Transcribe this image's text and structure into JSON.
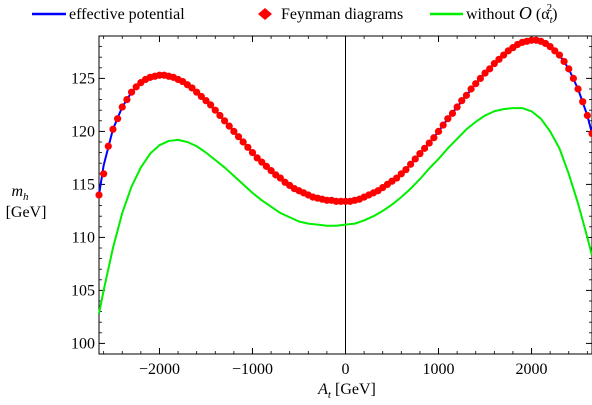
{
  "chart_data": {
    "type": "line",
    "title": "",
    "xlabel": {
      "symbol": "A",
      "sub": "t",
      "unit": "[GeV]"
    },
    "ylabel": {
      "symbol": "m",
      "sub": "h",
      "unit": "[GeV]"
    },
    "xlim": [
      -2650,
      2650
    ],
    "ylim": [
      99,
      129
    ],
    "x_ticks": [
      -2000,
      -1000,
      0,
      1000,
      2000
    ],
    "x_tick_labels": [
      "−2000",
      "−1000",
      "0",
      "1000",
      "2000"
    ],
    "y_ticks": [
      100,
      105,
      110,
      115,
      120,
      125
    ],
    "y_tick_labels": [
      "100",
      "105",
      "110",
      "115",
      "120",
      "125"
    ],
    "legend_placement": "top",
    "vertical_line_at_x": 0,
    "series": [
      {
        "name": "effective potential",
        "style": "line",
        "color": "#0000ff",
        "x": [
          -2650,
          -2600,
          -2500,
          -2400,
          -2300,
          -2200,
          -2100,
          -2000,
          -1900,
          -1800,
          -1700,
          -1600,
          -1500,
          -1400,
          -1300,
          -1200,
          -1100,
          -1000,
          -900,
          -800,
          -700,
          -600,
          -500,
          -400,
          -300,
          -200,
          -100,
          0,
          100,
          200,
          300,
          400,
          500,
          600,
          700,
          800,
          900,
          1000,
          1100,
          1200,
          1300,
          1400,
          1500,
          1600,
          1700,
          1800,
          1900,
          2000,
          2100,
          2200,
          2300,
          2400,
          2500,
          2600,
          2650
        ],
        "values": [
          114.0,
          116.8,
          120.2,
          122.3,
          123.7,
          124.6,
          125.1,
          125.3,
          125.2,
          124.9,
          124.4,
          123.7,
          122.9,
          122.0,
          121.0,
          120.0,
          119.0,
          118.0,
          117.1,
          116.3,
          115.6,
          114.9,
          114.4,
          114.0,
          113.7,
          113.5,
          113.4,
          113.4,
          113.5,
          113.8,
          114.2,
          114.7,
          115.3,
          116.0,
          116.9,
          117.9,
          118.9,
          120.0,
          121.2,
          122.3,
          123.4,
          124.5,
          125.5,
          126.4,
          127.2,
          127.9,
          128.4,
          128.6,
          128.5,
          128.0,
          127.2,
          125.9,
          124.0,
          121.5,
          119.8
        ]
      },
      {
        "name": "Feynman diagrams",
        "style": "points",
        "color": "#ff0000",
        "x": [
          -2650,
          -2600,
          -2550,
          -2500,
          -2450,
          -2400,
          -2350,
          -2300,
          -2250,
          -2200,
          -2150,
          -2100,
          -2050,
          -2000,
          -1950,
          -1900,
          -1850,
          -1800,
          -1750,
          -1700,
          -1650,
          -1600,
          -1550,
          -1500,
          -1450,
          -1400,
          -1350,
          -1300,
          -1250,
          -1200,
          -1150,
          -1100,
          -1050,
          -1000,
          -950,
          -900,
          -850,
          -800,
          -750,
          -700,
          -650,
          -600,
          -550,
          -500,
          -450,
          -400,
          -350,
          -300,
          -250,
          -200,
          -150,
          -100,
          -50,
          0,
          50,
          100,
          150,
          200,
          250,
          300,
          350,
          400,
          450,
          500,
          550,
          600,
          650,
          700,
          750,
          800,
          850,
          900,
          950,
          1000,
          1050,
          1100,
          1150,
          1200,
          1250,
          1300,
          1350,
          1400,
          1450,
          1500,
          1550,
          1600,
          1650,
          1700,
          1750,
          1800,
          1850,
          1900,
          1950,
          2000,
          2050,
          2100,
          2150,
          2200,
          2250,
          2300,
          2350,
          2400,
          2450,
          2500,
          2550,
          2600,
          2650
        ],
        "values": [
          114.0,
          116.0,
          118.6,
          120.2,
          121.2,
          122.3,
          123.0,
          123.7,
          124.2,
          124.6,
          124.9,
          125.1,
          125.2,
          125.3,
          125.3,
          125.2,
          125.1,
          124.9,
          124.7,
          124.4,
          124.1,
          123.7,
          123.3,
          122.9,
          122.5,
          122.0,
          121.5,
          121.0,
          120.5,
          120.0,
          119.5,
          119.0,
          118.5,
          118.0,
          117.5,
          117.1,
          116.7,
          116.3,
          115.9,
          115.6,
          115.2,
          114.9,
          114.6,
          114.4,
          114.2,
          114.0,
          113.8,
          113.7,
          113.6,
          113.5,
          113.5,
          113.4,
          113.4,
          113.4,
          113.4,
          113.5,
          113.6,
          113.8,
          114.0,
          114.2,
          114.4,
          114.7,
          115.0,
          115.3,
          115.6,
          116.0,
          116.4,
          116.9,
          117.4,
          117.9,
          118.4,
          118.9,
          119.4,
          120.0,
          120.6,
          121.2,
          121.7,
          122.3,
          122.9,
          123.4,
          124.0,
          124.5,
          125.0,
          125.5,
          125.9,
          126.4,
          126.8,
          127.2,
          127.6,
          127.9,
          128.2,
          128.4,
          128.5,
          128.6,
          128.6,
          128.5,
          128.3,
          128.0,
          127.6,
          127.2,
          126.6,
          125.9,
          125.0,
          124.0,
          122.8,
          121.5,
          119.8
        ]
      },
      {
        "name": "without O (αt2)",
        "legend_label": {
          "prefix": "without",
          "symbol": "O",
          "alpha": "(α",
          "sub": "t",
          "sup": "2",
          "close": ")"
        },
        "style": "line",
        "color": "#00ee00",
        "x": [
          -2650,
          -2600,
          -2500,
          -2400,
          -2300,
          -2200,
          -2100,
          -2000,
          -1900,
          -1800,
          -1700,
          -1600,
          -1500,
          -1400,
          -1300,
          -1200,
          -1100,
          -1000,
          -900,
          -800,
          -700,
          -600,
          -500,
          -400,
          -300,
          -200,
          -100,
          0,
          100,
          200,
          300,
          400,
          500,
          600,
          700,
          800,
          900,
          1000,
          1100,
          1200,
          1300,
          1400,
          1500,
          1600,
          1700,
          1800,
          1900,
          2000,
          2100,
          2200,
          2300,
          2400,
          2500,
          2600,
          2650
        ],
        "values": [
          102.8,
          105.0,
          109.0,
          112.3,
          114.8,
          116.6,
          117.9,
          118.7,
          119.1,
          119.2,
          119.0,
          118.6,
          118.0,
          117.3,
          116.6,
          115.8,
          115.0,
          114.2,
          113.5,
          112.9,
          112.3,
          111.9,
          111.5,
          111.3,
          111.2,
          111.1,
          111.1,
          111.2,
          111.3,
          111.6,
          112.0,
          112.5,
          113.1,
          113.8,
          114.6,
          115.5,
          116.5,
          117.4,
          118.4,
          119.3,
          120.2,
          120.9,
          121.5,
          121.9,
          122.1,
          122.2,
          122.2,
          121.9,
          121.2,
          120.0,
          118.4,
          116.0,
          113.2,
          110.0,
          108.3
        ]
      }
    ]
  }
}
